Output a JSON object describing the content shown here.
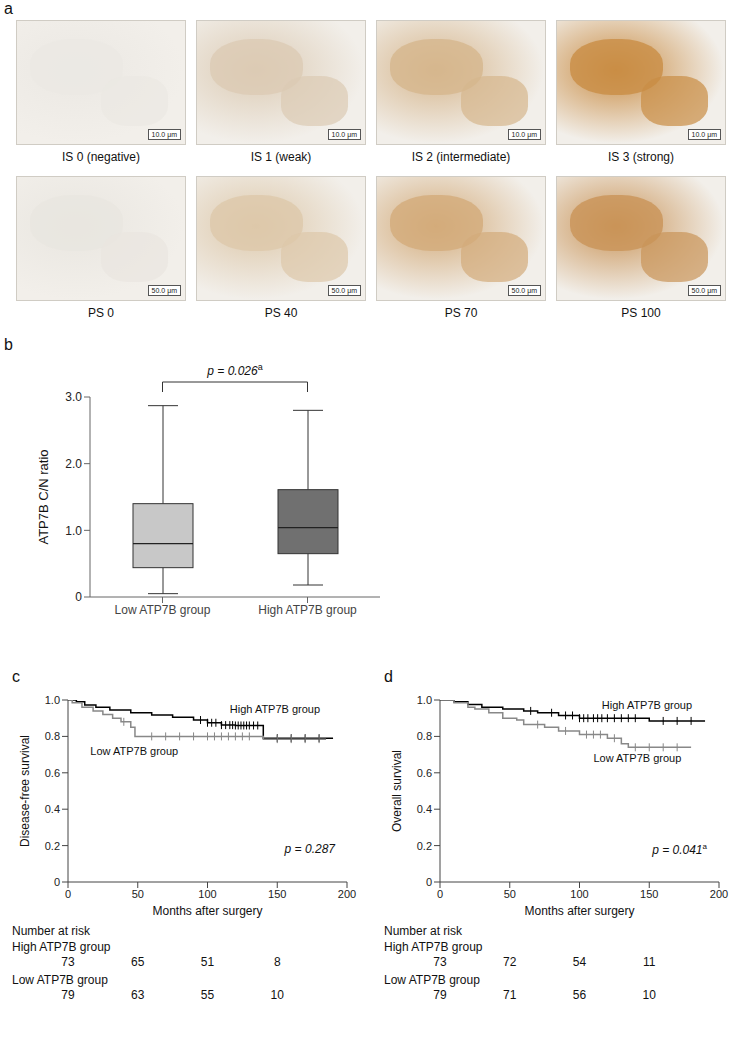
{
  "panel_a": {
    "label": "a",
    "rows": [
      {
        "scale_bar": "10.0 μm",
        "images": [
          "IS 0 (negative)",
          "IS 1 (weak)",
          "IS 2 (intermediate)",
          "IS 3 (strong)"
        ]
      },
      {
        "scale_bar": "50.0 μm",
        "images": [
          "PS 0",
          "PS 40",
          "PS 70",
          "PS 100"
        ]
      }
    ]
  },
  "chart_data": [
    {
      "panel": "b",
      "type": "box",
      "y_label": "ATP7B C/N ratio",
      "categories": [
        "Low ATP7B group",
        "High ATP7B group"
      ],
      "colors": [
        "#c8c8c8",
        "#707070"
      ],
      "stats": {
        "min": [
          0.05,
          0.18
        ],
        "q1": [
          0.44,
          0.65
        ],
        "median": [
          0.8,
          1.04
        ],
        "q3": [
          1.4,
          1.61
        ],
        "max": [
          2.87,
          2.8
        ]
      },
      "ylim": [
        0,
        3
      ],
      "yticks": [
        0,
        {
          "value": 1,
          "label": "1.0"
        },
        {
          "value": 2,
          "label": "2.0"
        },
        {
          "value": 3,
          "label": "3.0"
        }
      ],
      "annotation": {
        "text": "p = 0.026",
        "superscript": "a"
      }
    },
    {
      "panel": "c",
      "type": "step",
      "y_label": "Disease-free survival",
      "x_label": "Months after surgery",
      "xlim": [
        0,
        200
      ],
      "xticks": [
        0,
        50,
        100,
        150,
        200
      ],
      "ylim": [
        0,
        1
      ],
      "yticks": [
        0,
        0.2,
        0.4,
        0.6,
        0.8,
        {
          "value": 1,
          "label": "1.0"
        }
      ],
      "annotation": {
        "text": "p = 0.287"
      },
      "series": [
        {
          "name": "High ATP7B group",
          "color": "#000000",
          "x": [
            0,
            6,
            12,
            20,
            30,
            45,
            60,
            75,
            90,
            100,
            110,
            120,
            140,
            190
          ],
          "values": [
            1,
            0.99,
            0.973,
            0.96,
            0.945,
            0.93,
            0.918,
            0.905,
            0.89,
            0.875,
            0.862,
            0.86,
            0.79,
            0.79
          ],
          "censored": {
            "x": [
              95,
              100,
              103,
              106,
              110,
              113,
              116,
              118,
              120,
              122,
              124,
              126,
              128,
              130,
              133,
              136,
              150,
              160,
              170,
              180
            ],
            "values": [
              0.89,
              0.875,
              0.875,
              0.875,
              0.862,
              0.862,
              0.862,
              0.862,
              0.86,
              0.86,
              0.86,
              0.86,
              0.86,
              0.86,
              0.86,
              0.86,
              0.79,
              0.79,
              0.79,
              0.79
            ]
          }
        },
        {
          "name": "Low ATP7B group",
          "color": "#888888",
          "x": [
            0,
            3,
            10,
            18,
            25,
            32,
            38,
            45,
            48,
            140,
            185
          ],
          "values": [
            1,
            0.985,
            0.96,
            0.94,
            0.92,
            0.9,
            0.88,
            0.85,
            0.8,
            0.785,
            0.785
          ],
          "censored": {
            "x": [
              40,
              60,
              70,
              80,
              90,
              100,
              105,
              110,
              115,
              120,
              125,
              130,
              150,
              160,
              170,
              180
            ],
            "values": [
              0.88,
              0.8,
              0.8,
              0.8,
              0.8,
              0.8,
              0.8,
              0.8,
              0.8,
              0.8,
              0.8,
              0.8,
              0.785,
              0.785,
              0.785,
              0.785
            ]
          }
        }
      ],
      "at_risk": {
        "title": "Number at risk",
        "x": [
          0,
          50,
          100,
          150
        ],
        "rows": [
          {
            "name": "High ATP7B group",
            "values": [
              73,
              65,
              51,
              8
            ]
          },
          {
            "name": "Low ATP7B group",
            "values": [
              79,
              63,
              55,
              10
            ]
          }
        ]
      }
    },
    {
      "panel": "d",
      "type": "step",
      "y_label": "Overall survival",
      "x_label": "Months after surgery",
      "xlim": [
        0,
        200
      ],
      "xticks": [
        0,
        50,
        100,
        150,
        200
      ],
      "ylim": [
        0,
        1
      ],
      "yticks": [
        0,
        0.2,
        0.4,
        0.6,
        0.8,
        {
          "value": 1,
          "label": "1.0"
        }
      ],
      "annotation": {
        "text": "p = 0.041",
        "superscript": "a"
      },
      "series": [
        {
          "name": "High ATP7B group",
          "color": "#000000",
          "x": [
            0,
            10,
            20,
            30,
            45,
            60,
            70,
            85,
            100,
            150,
            190
          ],
          "values": [
            1,
            0.99,
            0.975,
            0.96,
            0.95,
            0.94,
            0.93,
            0.915,
            0.9,
            0.885,
            0.885
          ],
          "censored": {
            "x": [
              65,
              80,
              90,
              95,
              100,
              103,
              106,
              110,
              113,
              116,
              120,
              125,
              130,
              135,
              140,
              160,
              170,
              180
            ],
            "values": [
              0.94,
              0.93,
              0.915,
              0.915,
              0.9,
              0.9,
              0.9,
              0.9,
              0.9,
              0.9,
              0.9,
              0.9,
              0.9,
              0.9,
              0.9,
              0.885,
              0.885,
              0.885
            ]
          }
        },
        {
          "name": "Low ATP7B group",
          "color": "#888888",
          "x": [
            0,
            10,
            20,
            25,
            35,
            45,
            55,
            60,
            75,
            85,
            100,
            120,
            130,
            135,
            180
          ],
          "values": [
            1,
            0.985,
            0.96,
            0.95,
            0.93,
            0.9,
            0.89,
            0.865,
            0.85,
            0.83,
            0.81,
            0.79,
            0.76,
            0.74,
            0.74
          ],
          "censored": {
            "x": [
              70,
              90,
              105,
              110,
              115,
              125,
              140,
              150,
              160,
              170
            ],
            "values": [
              0.865,
              0.83,
              0.81,
              0.81,
              0.81,
              0.79,
              0.74,
              0.74,
              0.74,
              0.74
            ]
          }
        }
      ],
      "at_risk": {
        "title": "Number at risk",
        "x": [
          0,
          50,
          100,
          150
        ],
        "rows": [
          {
            "name": "High ATP7B group",
            "values": [
              73,
              72,
              54,
              11
            ]
          },
          {
            "name": "Low ATP7B group",
            "values": [
              79,
              71,
              56,
              10
            ]
          }
        ]
      }
    }
  ]
}
